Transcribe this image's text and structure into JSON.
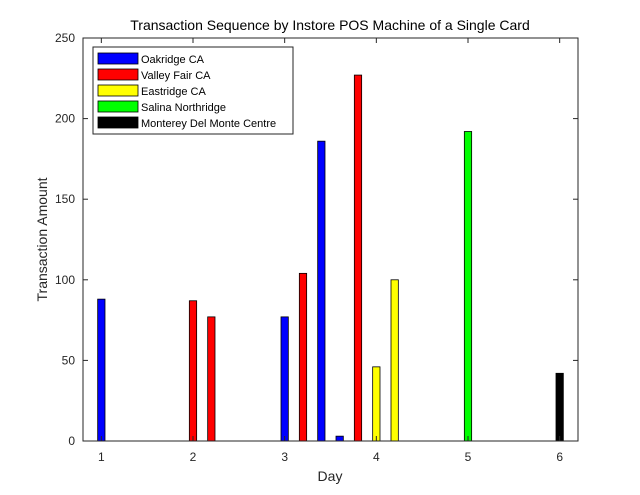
{
  "chart_data": {
    "type": "bar",
    "title": "Transaction Sequence by Instore POS Machine of a Single Card",
    "xlabel": "Day",
    "ylabel": "Transaction Amount",
    "xlim": [
      0.8,
      6.2
    ],
    "ylim": [
      0,
      250
    ],
    "xticks": [
      "1",
      "2",
      "3",
      "4",
      "5",
      "6"
    ],
    "yticks": [
      "0",
      "50",
      "100",
      "150",
      "200",
      "250"
    ],
    "grid": false,
    "legend_position": "top-left",
    "legend": [
      {
        "name": "Oakridge CA",
        "color": "#0000ff"
      },
      {
        "name": "Valley Fair CA",
        "color": "#ff0000"
      },
      {
        "name": "Eastridge CA",
        "color": "#ffff00"
      },
      {
        "name": "Salina Northridge",
        "color": "#00ff00"
      },
      {
        "name": "Monterey Del Monte Centre",
        "color": "#000000"
      }
    ],
    "bars": [
      {
        "x": 1.0,
        "value": 88,
        "series": "Oakridge CA"
      },
      {
        "x": 2.0,
        "value": 87,
        "series": "Valley Fair CA"
      },
      {
        "x": 2.2,
        "value": 77,
        "series": "Valley Fair CA"
      },
      {
        "x": 3.0,
        "value": 77,
        "series": "Oakridge CA"
      },
      {
        "x": 3.2,
        "value": 104,
        "series": "Valley Fair CA"
      },
      {
        "x": 3.4,
        "value": 186,
        "series": "Oakridge CA"
      },
      {
        "x": 3.6,
        "value": 3,
        "series": "Oakridge CA"
      },
      {
        "x": 3.8,
        "value": 227,
        "series": "Valley Fair CA"
      },
      {
        "x": 4.0,
        "value": 46,
        "series": "Eastridge CA"
      },
      {
        "x": 4.2,
        "value": 100,
        "series": "Eastridge CA"
      },
      {
        "x": 5.0,
        "value": 192,
        "series": "Salina Northridge"
      },
      {
        "x": 6.0,
        "value": 42,
        "series": "Monterey Del Monte Centre"
      }
    ]
  }
}
